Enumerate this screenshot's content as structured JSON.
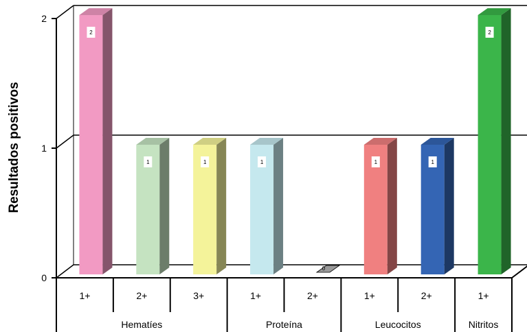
{
  "chart_data": {
    "type": "bar",
    "ylabel": "Resultados positivos",
    "ylim": [
      0,
      2
    ],
    "yticks": [
      "0",
      "1",
      "2"
    ],
    "grid": true,
    "bars": [
      {
        "group": "Hematíes",
        "label": "1+",
        "value": 2,
        "color": "#f29ac3"
      },
      {
        "group": "Hematíes",
        "label": "2+",
        "value": 1,
        "color": "#c5e3c1"
      },
      {
        "group": "Hematíes",
        "label": "3+",
        "value": 1,
        "color": "#f4f39a"
      },
      {
        "group": "Proteína",
        "label": "1+",
        "value": 1,
        "color": "#c5e8ee"
      },
      {
        "group": "Proteína",
        "label": "2+",
        "value": 0,
        "color": "#9a9a9a"
      },
      {
        "group": "Leucocitos",
        "label": "1+",
        "value": 1,
        "color": "#f08080"
      },
      {
        "group": "Leucocitos",
        "label": "2+",
        "value": 1,
        "color": "#3465b4"
      },
      {
        "group": "Nitritos",
        "label": "1+",
        "value": 2,
        "color": "#3bb54a"
      }
    ],
    "groups": [
      "Hematíes",
      "Proteína",
      "Leucocitos",
      "Nitritos"
    ]
  }
}
